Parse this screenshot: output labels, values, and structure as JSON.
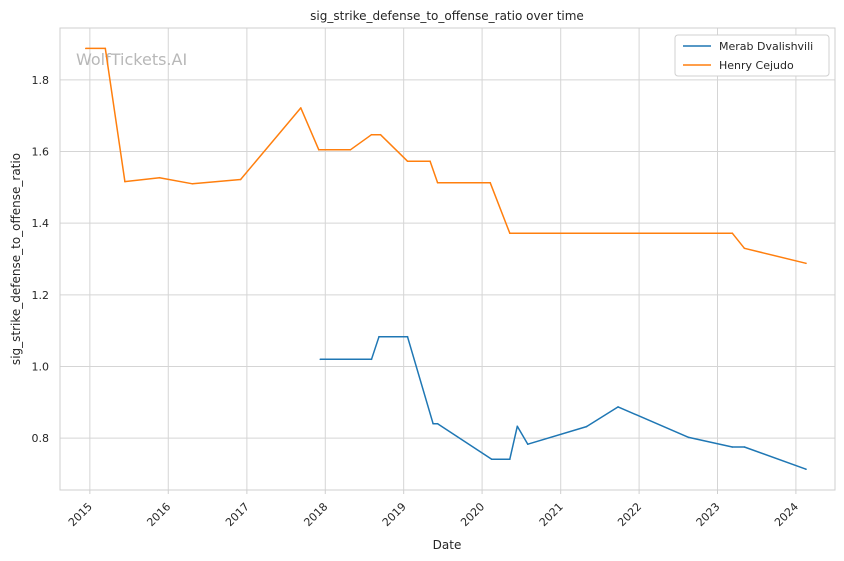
{
  "chart_data": {
    "type": "line",
    "title": "sig_strike_defense_to_offense_ratio over time",
    "xlabel": "Date",
    "ylabel": "sig_strike_defense_to_offense_ratio",
    "watermark": "WolfTickets.AI",
    "xlim": [
      "2014-08-15",
      "2024-07-01"
    ],
    "ylim": [
      0.655,
      1.945
    ],
    "x_ticks": [
      "2015",
      "2016",
      "2017",
      "2018",
      "2019",
      "2020",
      "2021",
      "2022",
      "2023",
      "2024"
    ],
    "y_ticks": [
      0.8,
      1.0,
      1.2,
      1.4,
      1.6,
      1.8
    ],
    "y_tick_labels": [
      "0.8",
      "1.0",
      "1.2",
      "1.4",
      "1.6",
      "1.8"
    ],
    "grid": true,
    "legend_position": "top-right",
    "series": [
      {
        "name": "Merab Dvalishvili",
        "color": "#1f77b4",
        "points": [
          [
            "2017-12-09",
            1.02
          ],
          [
            "2018-08-04",
            1.02
          ],
          [
            "2018-09-08",
            1.083
          ],
          [
            "2019-01-19",
            1.083
          ],
          [
            "2019-05-18",
            0.84
          ],
          [
            "2019-06-08",
            0.84
          ],
          [
            "2020-02-15",
            0.741
          ],
          [
            "2020-05-09",
            0.741
          ],
          [
            "2020-06-13",
            0.833
          ],
          [
            "2020-08-01",
            0.783
          ],
          [
            "2021-05-01",
            0.832
          ],
          [
            "2021-09-25",
            0.887
          ],
          [
            "2022-08-20",
            0.802
          ],
          [
            "2023-03-11",
            0.775
          ],
          [
            "2023-05-06",
            0.775
          ],
          [
            "2024-02-17",
            0.713
          ]
        ]
      },
      {
        "name": "Henry Cejudo",
        "color": "#ff7f0e",
        "points": [
          [
            "2014-12-13",
            1.888
          ],
          [
            "2015-03-14",
            1.888
          ],
          [
            "2015-06-13",
            1.516
          ],
          [
            "2015-11-21",
            1.527
          ],
          [
            "2016-04-23",
            1.51
          ],
          [
            "2016-12-03",
            1.522
          ],
          [
            "2017-09-09",
            1.722
          ],
          [
            "2017-12-02",
            1.605
          ],
          [
            "2018-04-28",
            1.605
          ],
          [
            "2018-08-04",
            1.647
          ],
          [
            "2018-09-15",
            1.647
          ],
          [
            "2019-01-19",
            1.573
          ],
          [
            "2019-05-04",
            1.573
          ],
          [
            "2019-06-08",
            1.513
          ],
          [
            "2020-02-08",
            1.513
          ],
          [
            "2020-05-09",
            1.372
          ],
          [
            "2023-03-11",
            1.372
          ],
          [
            "2023-05-06",
            1.33
          ],
          [
            "2024-02-17",
            1.288
          ]
        ]
      }
    ]
  }
}
